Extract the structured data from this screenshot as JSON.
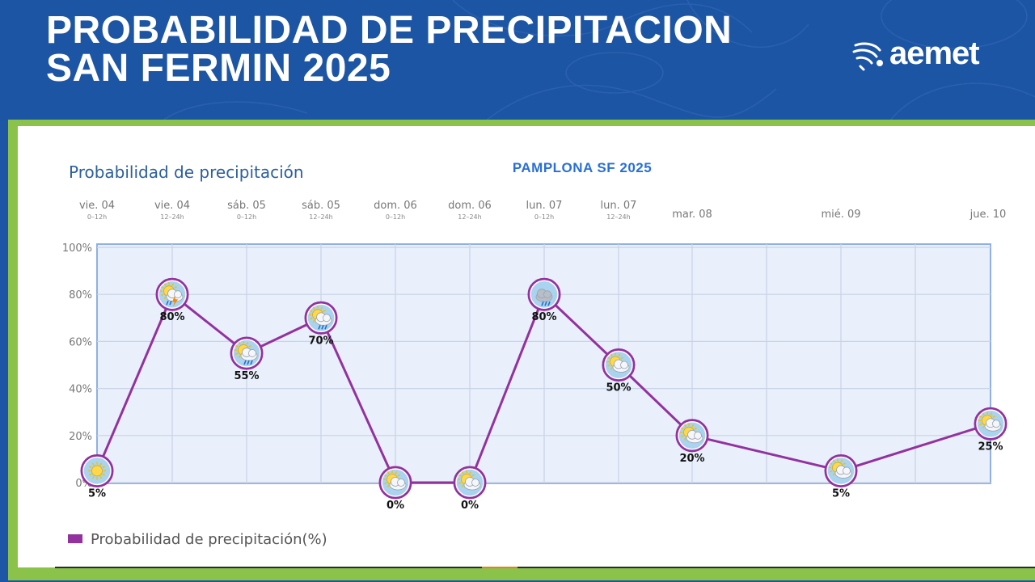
{
  "header": {
    "title_line1": "PROBABILIDAD DE PRECIPITACION",
    "title_line2": "SAN FERMIN 2025",
    "logo_text": "aemet"
  },
  "colors": {
    "banner": "#1d55a5",
    "panel_border": "#8bc34a",
    "series": "#93329e",
    "plot_bg": "#e9f0fb",
    "grid": "#c8d3e6"
  },
  "chart_data": {
    "type": "line",
    "title": "Probabilidad de precipitación",
    "subtitle": "PAMPLONA SF 2025",
    "legend": "bottom-left",
    "grid": true,
    "ylim": [
      0,
      100
    ],
    "yticks": [
      "100%",
      "80%",
      "60%",
      "40%",
      "20%",
      "0%"
    ],
    "periods": [
      {
        "day": "vie. 04",
        "range": "0–12h"
      },
      {
        "day": "vie. 04",
        "range": "12–24h"
      },
      {
        "day": "sáb. 05",
        "range": "0–12h"
      },
      {
        "day": "sáb. 05",
        "range": "12–24h"
      },
      {
        "day": "dom. 06",
        "range": "0–12h"
      },
      {
        "day": "dom. 06",
        "range": "12–24h"
      },
      {
        "day": "lun. 07",
        "range": "0–12h"
      },
      {
        "day": "lun. 07",
        "range": "12–24h"
      },
      {
        "day": "mar. 08",
        "range": ""
      },
      {
        "day": "mié. 09",
        "range": ""
      },
      {
        "day": "jue. 10",
        "range": ""
      }
    ],
    "series": [
      {
        "name": "Probabilidad de precipitación(%)",
        "values": [
          5,
          80,
          55,
          70,
          0,
          0,
          80,
          50,
          20,
          5,
          25
        ],
        "labels": [
          "5%",
          "80%",
          "55%",
          "70%",
          "0%",
          "0%",
          "80%",
          "50%",
          "20%",
          "5%",
          "25%"
        ],
        "icons": [
          "sun-icon",
          "sun-storm-icon",
          "sun-rain-icon",
          "sun-rain-icon",
          "sun-cloud-icon",
          "sun-cloud-icon",
          "cloud-rain-icon",
          "sun-cloud-icon",
          "sun-cloud-icon",
          "sun-cloud-icon",
          "sun-cloud-icon"
        ]
      }
    ]
  }
}
